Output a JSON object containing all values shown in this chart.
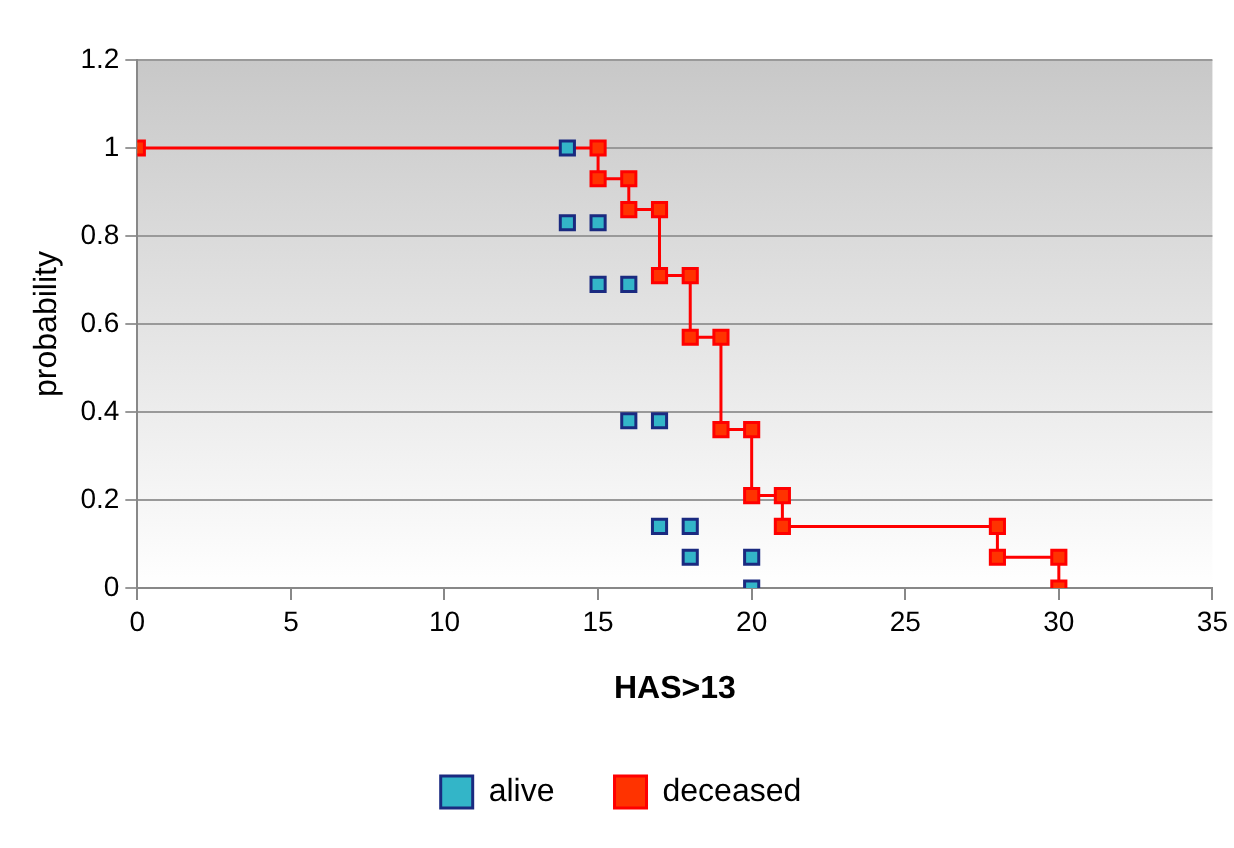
{
  "chart_data": {
    "type": "scatter",
    "xlabel": "HAS>13",
    "ylabel": "probability",
    "xlim": [
      0,
      35
    ],
    "xticks": [
      0,
      5,
      10,
      15,
      20,
      25,
      30,
      35
    ],
    "ylim": [
      0,
      1.2
    ],
    "yticks": [
      0,
      0.2,
      0.4,
      0.6,
      0.8,
      1,
      1.2
    ],
    "grid": "y",
    "legend": "bottom",
    "marker": "square",
    "series": [
      {
        "name": "alive",
        "type": "scatter",
        "color": "#33b5c8",
        "x": [
          14,
          14,
          15,
          15,
          16,
          16,
          17,
          17,
          18,
          18,
          20,
          20
        ],
        "values": [
          1,
          0.83,
          0.83,
          0.69,
          0.69,
          0.38,
          0.38,
          0.14,
          0.14,
          0.07,
          0.07,
          0
        ]
      },
      {
        "name": "deceased",
        "type": "line",
        "color": "#ff3300",
        "x": [
          0,
          15,
          15,
          16,
          16,
          17,
          17,
          18,
          18,
          19,
          19,
          20,
          20,
          21,
          21,
          28,
          28,
          30,
          30
        ],
        "values": [
          1,
          1,
          0.93,
          0.93,
          0.86,
          0.86,
          0.71,
          0.71,
          0.57,
          0.57,
          0.36,
          0.36,
          0.21,
          0.21,
          0.14,
          0.14,
          0.07,
          0.07,
          0
        ]
      }
    ]
  }
}
